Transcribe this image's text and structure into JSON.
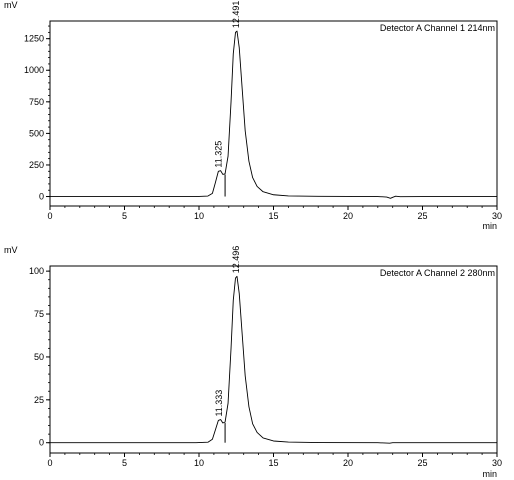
{
  "chart_data": [
    {
      "type": "line",
      "unit_label": "mV",
      "legend": "Detector A Channel 1 214nm",
      "xlabel": "min",
      "ylabel": "",
      "xlim": [
        0,
        30
      ],
      "ylim": [
        -75,
        1390
      ],
      "x_ticks": [
        0,
        5,
        10,
        15,
        20,
        25,
        30
      ],
      "y_ticks": [
        0,
        250,
        500,
        750,
        1000,
        1250
      ],
      "grid": false,
      "series": [
        {
          "values": [
            [
              0,
              0
            ],
            [
              5,
              0
            ],
            [
              9.8,
              0
            ],
            [
              10.6,
              4
            ],
            [
              10.9,
              25
            ],
            [
              11.1,
              110
            ],
            [
              11.3,
              200
            ],
            [
              11.45,
              205
            ],
            [
              11.6,
              175
            ],
            [
              11.75,
              180
            ],
            [
              11.95,
              320
            ],
            [
              12.15,
              750
            ],
            [
              12.3,
              1130
            ],
            [
              12.45,
              1300
            ],
            [
              12.55,
              1310
            ],
            [
              12.7,
              1180
            ],
            [
              12.9,
              850
            ],
            [
              13.1,
              520
            ],
            [
              13.35,
              280
            ],
            [
              13.6,
              150
            ],
            [
              13.9,
              80
            ],
            [
              14.3,
              38
            ],
            [
              15,
              14
            ],
            [
              16,
              5
            ],
            [
              18,
              2
            ],
            [
              22,
              0
            ],
            [
              22.6,
              -4
            ],
            [
              22.85,
              -14
            ],
            [
              23.0,
              -6
            ],
            [
              23.2,
              3
            ],
            [
              23.5,
              -1
            ],
            [
              25,
              0
            ],
            [
              30,
              0
            ]
          ]
        }
      ],
      "peaks": [
        {
          "label": "11.325",
          "x": 11.325,
          "y": 205
        },
        {
          "label": "12.491",
          "x": 12.491,
          "y": 1310
        }
      ]
    },
    {
      "type": "line",
      "unit_label": "mV",
      "legend": "Detector A Channel 2 280nm",
      "xlabel": "min",
      "ylabel": "",
      "xlim": [
        0,
        30
      ],
      "ylim": [
        -6,
        103
      ],
      "x_ticks": [
        0,
        5,
        10,
        15,
        20,
        25,
        30
      ],
      "y_ticks": [
        0,
        25,
        50,
        75,
        100
      ],
      "grid": false,
      "series": [
        {
          "values": [
            [
              0,
              0
            ],
            [
              5,
              0
            ],
            [
              9.8,
              0
            ],
            [
              10.6,
              0.3
            ],
            [
              10.9,
              2
            ],
            [
              11.1,
              7.5
            ],
            [
              11.3,
              13
            ],
            [
              11.45,
              13.5
            ],
            [
              11.6,
              11.5
            ],
            [
              11.75,
              12
            ],
            [
              11.95,
              23
            ],
            [
              12.15,
              55
            ],
            [
              12.3,
              83
            ],
            [
              12.45,
              96
            ],
            [
              12.55,
              97
            ],
            [
              12.7,
              87
            ],
            [
              12.9,
              63
            ],
            [
              13.1,
              39
            ],
            [
              13.35,
              21
            ],
            [
              13.6,
              11
            ],
            [
              13.9,
              6
            ],
            [
              14.3,
              2.8
            ],
            [
              15,
              1
            ],
            [
              16,
              0.4
            ],
            [
              18,
              0.1
            ],
            [
              22,
              0
            ],
            [
              22.8,
              -0.3
            ],
            [
              23,
              0
            ],
            [
              25,
              0
            ],
            [
              30,
              0
            ]
          ]
        }
      ],
      "peaks": [
        {
          "label": "11.333",
          "x": 11.333,
          "y": 13.5
        },
        {
          "label": "12.496",
          "x": 12.496,
          "y": 97
        }
      ]
    }
  ]
}
